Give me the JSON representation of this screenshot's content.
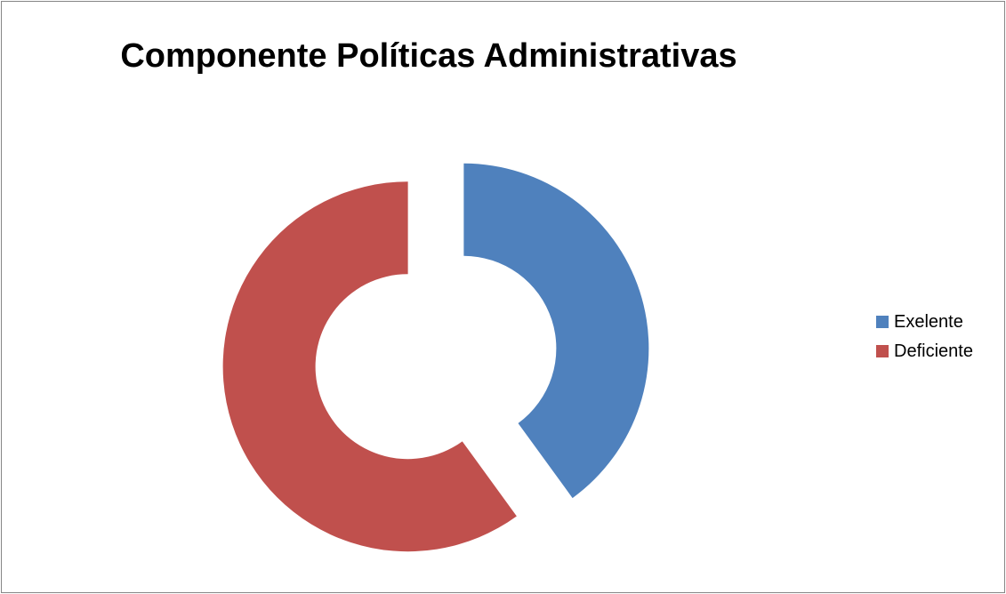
{
  "chart_data": {
    "type": "pie",
    "variant": "doughnut-exploded",
    "title": "Componente Políticas Administrativas",
    "categories": [
      "Exelente",
      "Deficiente"
    ],
    "values": [
      40,
      60
    ],
    "colors": [
      "#4F81BD",
      "#C0504D"
    ],
    "legend": "right",
    "data_labels": false
  }
}
